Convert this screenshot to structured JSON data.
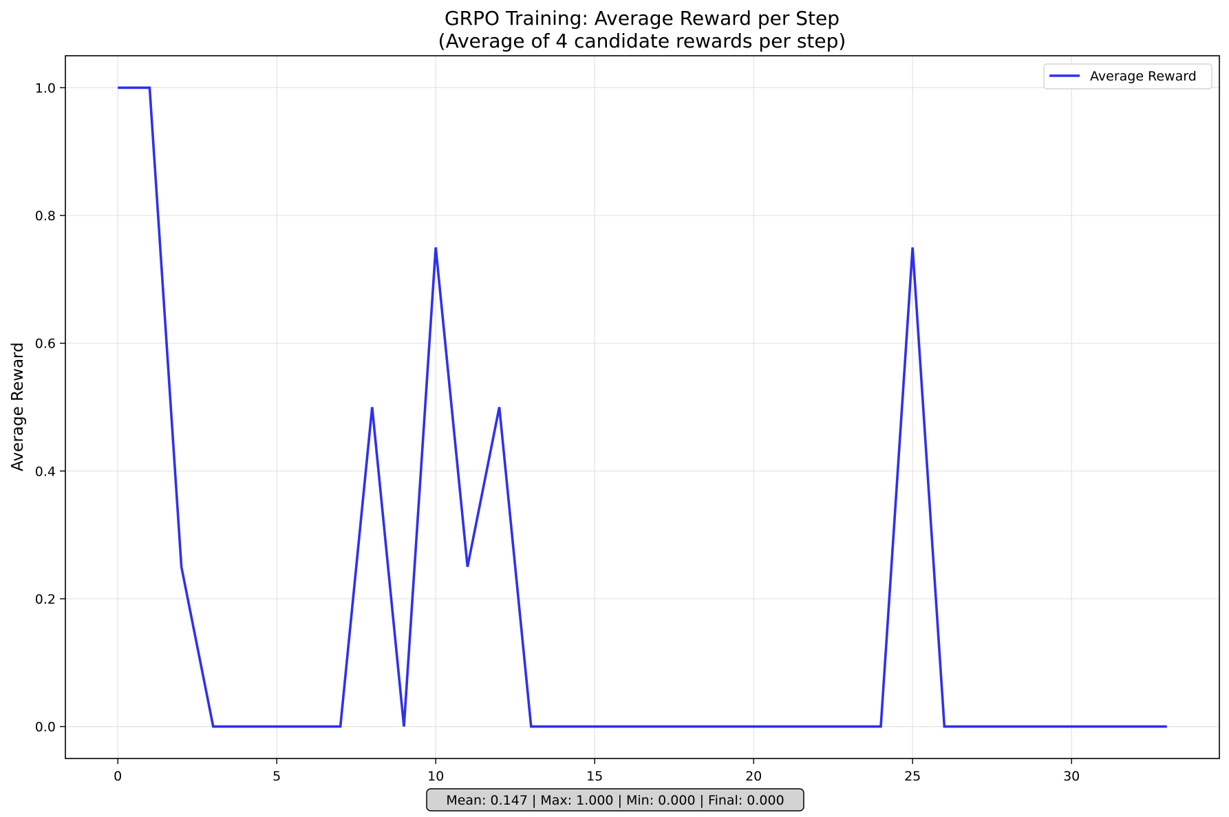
{
  "chart_data": {
    "type": "line",
    "title_line1": "GRPO Training: Average Reward per Step",
    "title_line2": "(Average of 4 candidate rewards per step)",
    "xlabel": "",
    "ylabel": "Average Reward",
    "xlim": [
      -1.65,
      34.65
    ],
    "ylim": [
      -0.05,
      1.05
    ],
    "xticks": [
      0,
      5,
      10,
      15,
      20,
      25,
      30
    ],
    "yticks": [
      0.0,
      0.2,
      0.4,
      0.6,
      0.8,
      1.0
    ],
    "xtick_labels": [
      "0",
      "5",
      "10",
      "15",
      "20",
      "25",
      "30"
    ],
    "ytick_labels": [
      "0.0",
      "0.2",
      "0.4",
      "0.6",
      "0.8",
      "1.0"
    ],
    "grid": true,
    "legend_position": "top-right",
    "series": [
      {
        "name": "Average Reward",
        "color": "#1a1aeb",
        "x": [
          0,
          1,
          2,
          3,
          4,
          5,
          6,
          7,
          8,
          9,
          10,
          11,
          12,
          13,
          14,
          15,
          16,
          17,
          18,
          19,
          20,
          21,
          22,
          23,
          24,
          25,
          26,
          27,
          28,
          29,
          30,
          31,
          32,
          33
        ],
        "values": [
          1.0,
          1.0,
          0.25,
          0.0,
          0.0,
          0.0,
          0.0,
          0.0,
          0.5,
          0.0,
          0.75,
          0.25,
          0.5,
          0.0,
          0.0,
          0.0,
          0.0,
          0.0,
          0.0,
          0.0,
          0.0,
          0.0,
          0.0,
          0.0,
          0.0,
          0.75,
          0.0,
          0.0,
          0.0,
          0.0,
          0.0,
          0.0,
          0.0,
          0.0
        ]
      }
    ],
    "stats_text": "Mean: 0.147 | Max: 1.000 | Min: 0.000 | Final: 0.000"
  }
}
